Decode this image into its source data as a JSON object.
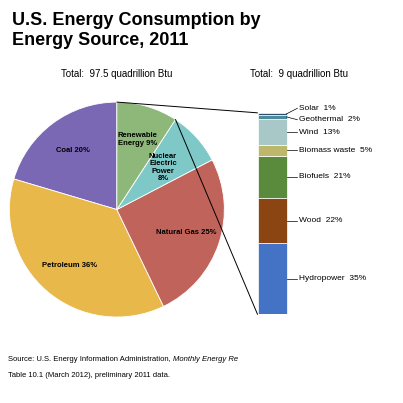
{
  "chart_data": [
    {
      "type": "pie",
      "title": "U.S. Energy Consumption by\nEnergy Source, 2011",
      "subtitle": "Total:  97.5 quadrillion Btu",
      "categories": [
        "Coal 20%",
        "Petroleum 36%",
        "Natural Gas 25%",
        "Nuclear\nElectric\nPower\n8%",
        "Renewable\nEnergy 9%"
      ],
      "values": [
        20,
        36,
        25,
        8,
        9
      ],
      "colors": [
        "#7B68B5",
        "#E8B84B",
        "#C0635A",
        "#7EC8C8",
        "#8DB87A"
      ],
      "annotations": [
        "Source: U.S. Energy Information Administration, ",
        "Monthly Energy Re",
        "Table 10.1 (March 2012), preliminary 2011 data."
      ]
    },
    {
      "type": "bar",
      "stacked": true,
      "subtitle": "Total:  9 quadrillion Btu",
      "categories": [
        null
      ],
      "series": [
        {
          "name": "Hydropower  35%",
          "color": "#4472C4",
          "values": [
            35
          ]
        },
        {
          "name": "Wood  22%",
          "color": "#8B4513",
          "values": [
            22
          ]
        },
        {
          "name": "Biofuels  21%",
          "color": "#5A8A3C",
          "values": [
            21
          ]
        },
        {
          "name": "Biomass waste  5%",
          "color": "#BDB76B",
          "values": [
            5
          ]
        },
        {
          "name": "Wind  13%",
          "color": "#A8C8C8",
          "values": [
            13
          ]
        },
        {
          "name": "Geothermal  2%",
          "color": "#4B8B9B",
          "values": [
            2
          ]
        },
        {
          "name": "Solar  1%",
          "color": "#2F4F6F",
          "values": [
            1
          ]
        }
      ],
      "ylim": [
        0,
        99
      ],
      "tick_labels": false
    }
  ]
}
